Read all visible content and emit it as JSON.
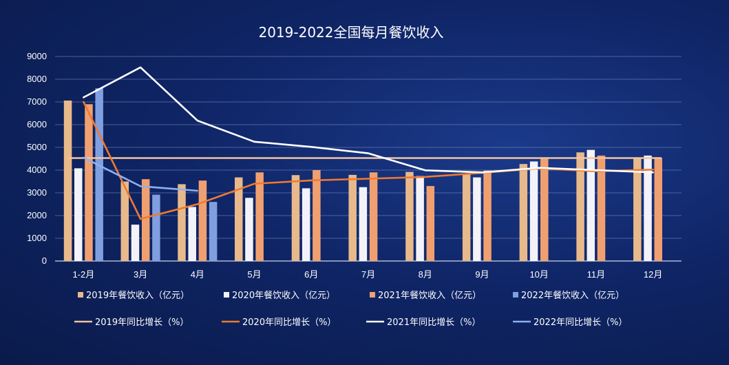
{
  "chart_data": {
    "type": "bar",
    "title": "2019-2022全国每月餐饮收入",
    "categories": [
      "1-2月",
      "3月",
      "4月",
      "5月",
      "6月",
      "7月",
      "8月",
      "9月",
      "10月",
      "11月",
      "12月"
    ],
    "ylim": [
      0,
      9000
    ],
    "yticks": [
      0,
      1000,
      2000,
      3000,
      4000,
      5000,
      6000,
      7000,
      8000,
      9000
    ],
    "grid": true,
    "legend_position": "bottom",
    "bar_series": [
      {
        "name": "2019年餐饮收入（亿元）",
        "color": "#e8b98a",
        "values": [
          7060,
          3500,
          3380,
          3680,
          3780,
          3790,
          3920,
          3830,
          4270,
          4780,
          4520
        ]
      },
      {
        "name": "2020年餐饮收入（亿元）",
        "color": "#f2f2f8",
        "values": [
          4080,
          1600,
          2380,
          2780,
          3200,
          3250,
          3740,
          3680,
          4380,
          4890,
          4640
        ]
      },
      {
        "name": "2021年餐饮收入（亿元）",
        "color": "#f0a070",
        "values": [
          6900,
          3600,
          3540,
          3900,
          4000,
          3900,
          3300,
          3980,
          4520,
          4640,
          4530
        ]
      },
      {
        "name": "2022年餐饮收入（亿元）",
        "color": "#7f9fe0",
        "values": [
          7600,
          2920,
          2600,
          null,
          null,
          null,
          null,
          null,
          null,
          null,
          null
        ]
      }
    ],
    "line_series": [
      {
        "name": "2019年同比增长（%）",
        "color": "#f3c4a0",
        "values": [
          4530,
          4530,
          4530,
          4530,
          4530,
          4530,
          4530,
          4530,
          4530,
          4530,
          4530
        ]
      },
      {
        "name": "2020年同比增长（%）",
        "color": "#f07a30",
        "values": [
          7000,
          1850,
          2500,
          3400,
          3550,
          3620,
          3700,
          3880,
          4080,
          3950,
          4020
        ]
      },
      {
        "name": "2021年同比增长（%）",
        "color": "#ffffff",
        "values": [
          7200,
          8520,
          6180,
          5250,
          5020,
          4740,
          3990,
          3900,
          4100,
          4000,
          3900
        ]
      },
      {
        "name": "2022年同比增长（%）",
        "color": "#8fb0ee",
        "values": [
          4550,
          3290,
          3090,
          null,
          null,
          null,
          null,
          null,
          null,
          null,
          null
        ]
      }
    ]
  }
}
